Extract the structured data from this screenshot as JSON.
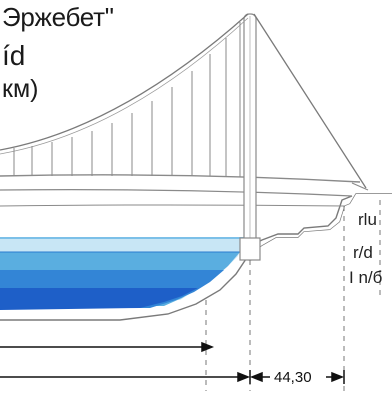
{
  "labels": {
    "title_line1": "Эржебет\"",
    "title_line2": "íd",
    "title_line3": "км)",
    "side_a": "rlu",
    "side_b": "r/d",
    "side_c": "I n/б",
    "dimension": "44,30"
  },
  "colors": {
    "water_top": "#bfe2f3",
    "water_mid": "#4fa3d8",
    "water_deep": "#1f63c9",
    "structure": "#8a8a8a",
    "ground": "#f4f4f4"
  }
}
